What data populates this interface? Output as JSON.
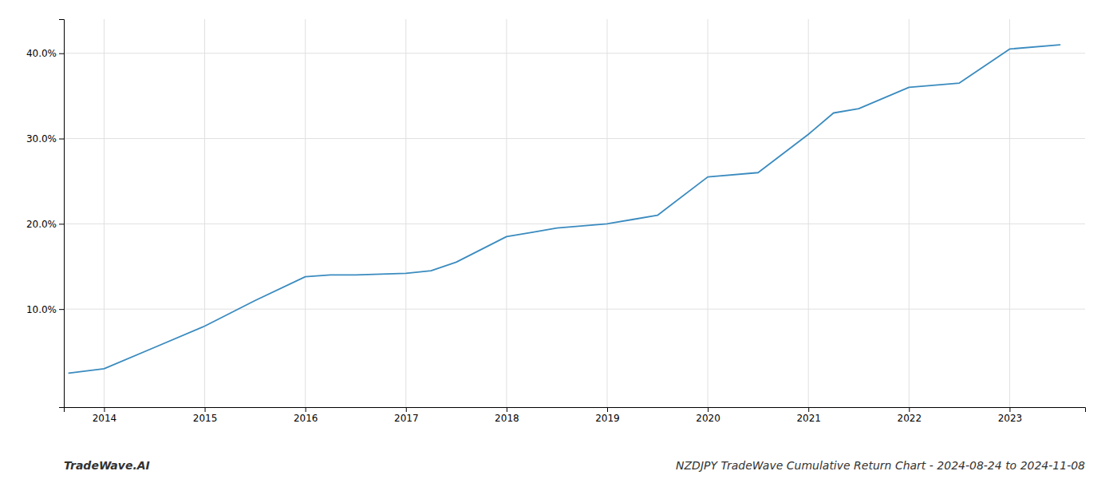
{
  "chart_data": {
    "type": "line",
    "title": "NZDJPY TradeWave Cumulative Return Chart - 2024-08-24 to 2024-11-08",
    "annotation": "TradeWave.AI",
    "x": [
      2013.65,
      2014.0,
      2014.5,
      2015.0,
      2015.5,
      2016.0,
      2016.25,
      2016.5,
      2017.0,
      2017.25,
      2017.5,
      2018.0,
      2018.25,
      2018.5,
      2019.0,
      2019.25,
      2019.5,
      2020.0,
      2020.5,
      2021.0,
      2021.25,
      2021.5,
      2022.0,
      2022.5,
      2023.0,
      2023.5
    ],
    "values": [
      2.5,
      3.0,
      5.5,
      8.0,
      11.0,
      13.8,
      14.0,
      14.0,
      14.2,
      14.5,
      15.5,
      18.5,
      19.0,
      19.5,
      20.0,
      20.5,
      21.0,
      25.5,
      26.0,
      30.5,
      33.0,
      33.5,
      36.0,
      36.5,
      40.5,
      41.0
    ],
    "color": "#3a8bbf",
    "xlim": [
      2013.6,
      2023.75
    ],
    "xticks": [
      2014,
      2015,
      2016,
      2017,
      2018,
      2019,
      2020,
      2021,
      2022,
      2023
    ],
    "ylim": [
      -1.5,
      44.0
    ],
    "yticks": [
      {
        "value": 10.0,
        "label": "10.0%"
      },
      {
        "value": 20.0,
        "label": "20.0%"
      },
      {
        "value": 30.0,
        "label": "30.0%"
      },
      {
        "value": 40.0,
        "label": "40.0%"
      }
    ],
    "grid": true
  }
}
